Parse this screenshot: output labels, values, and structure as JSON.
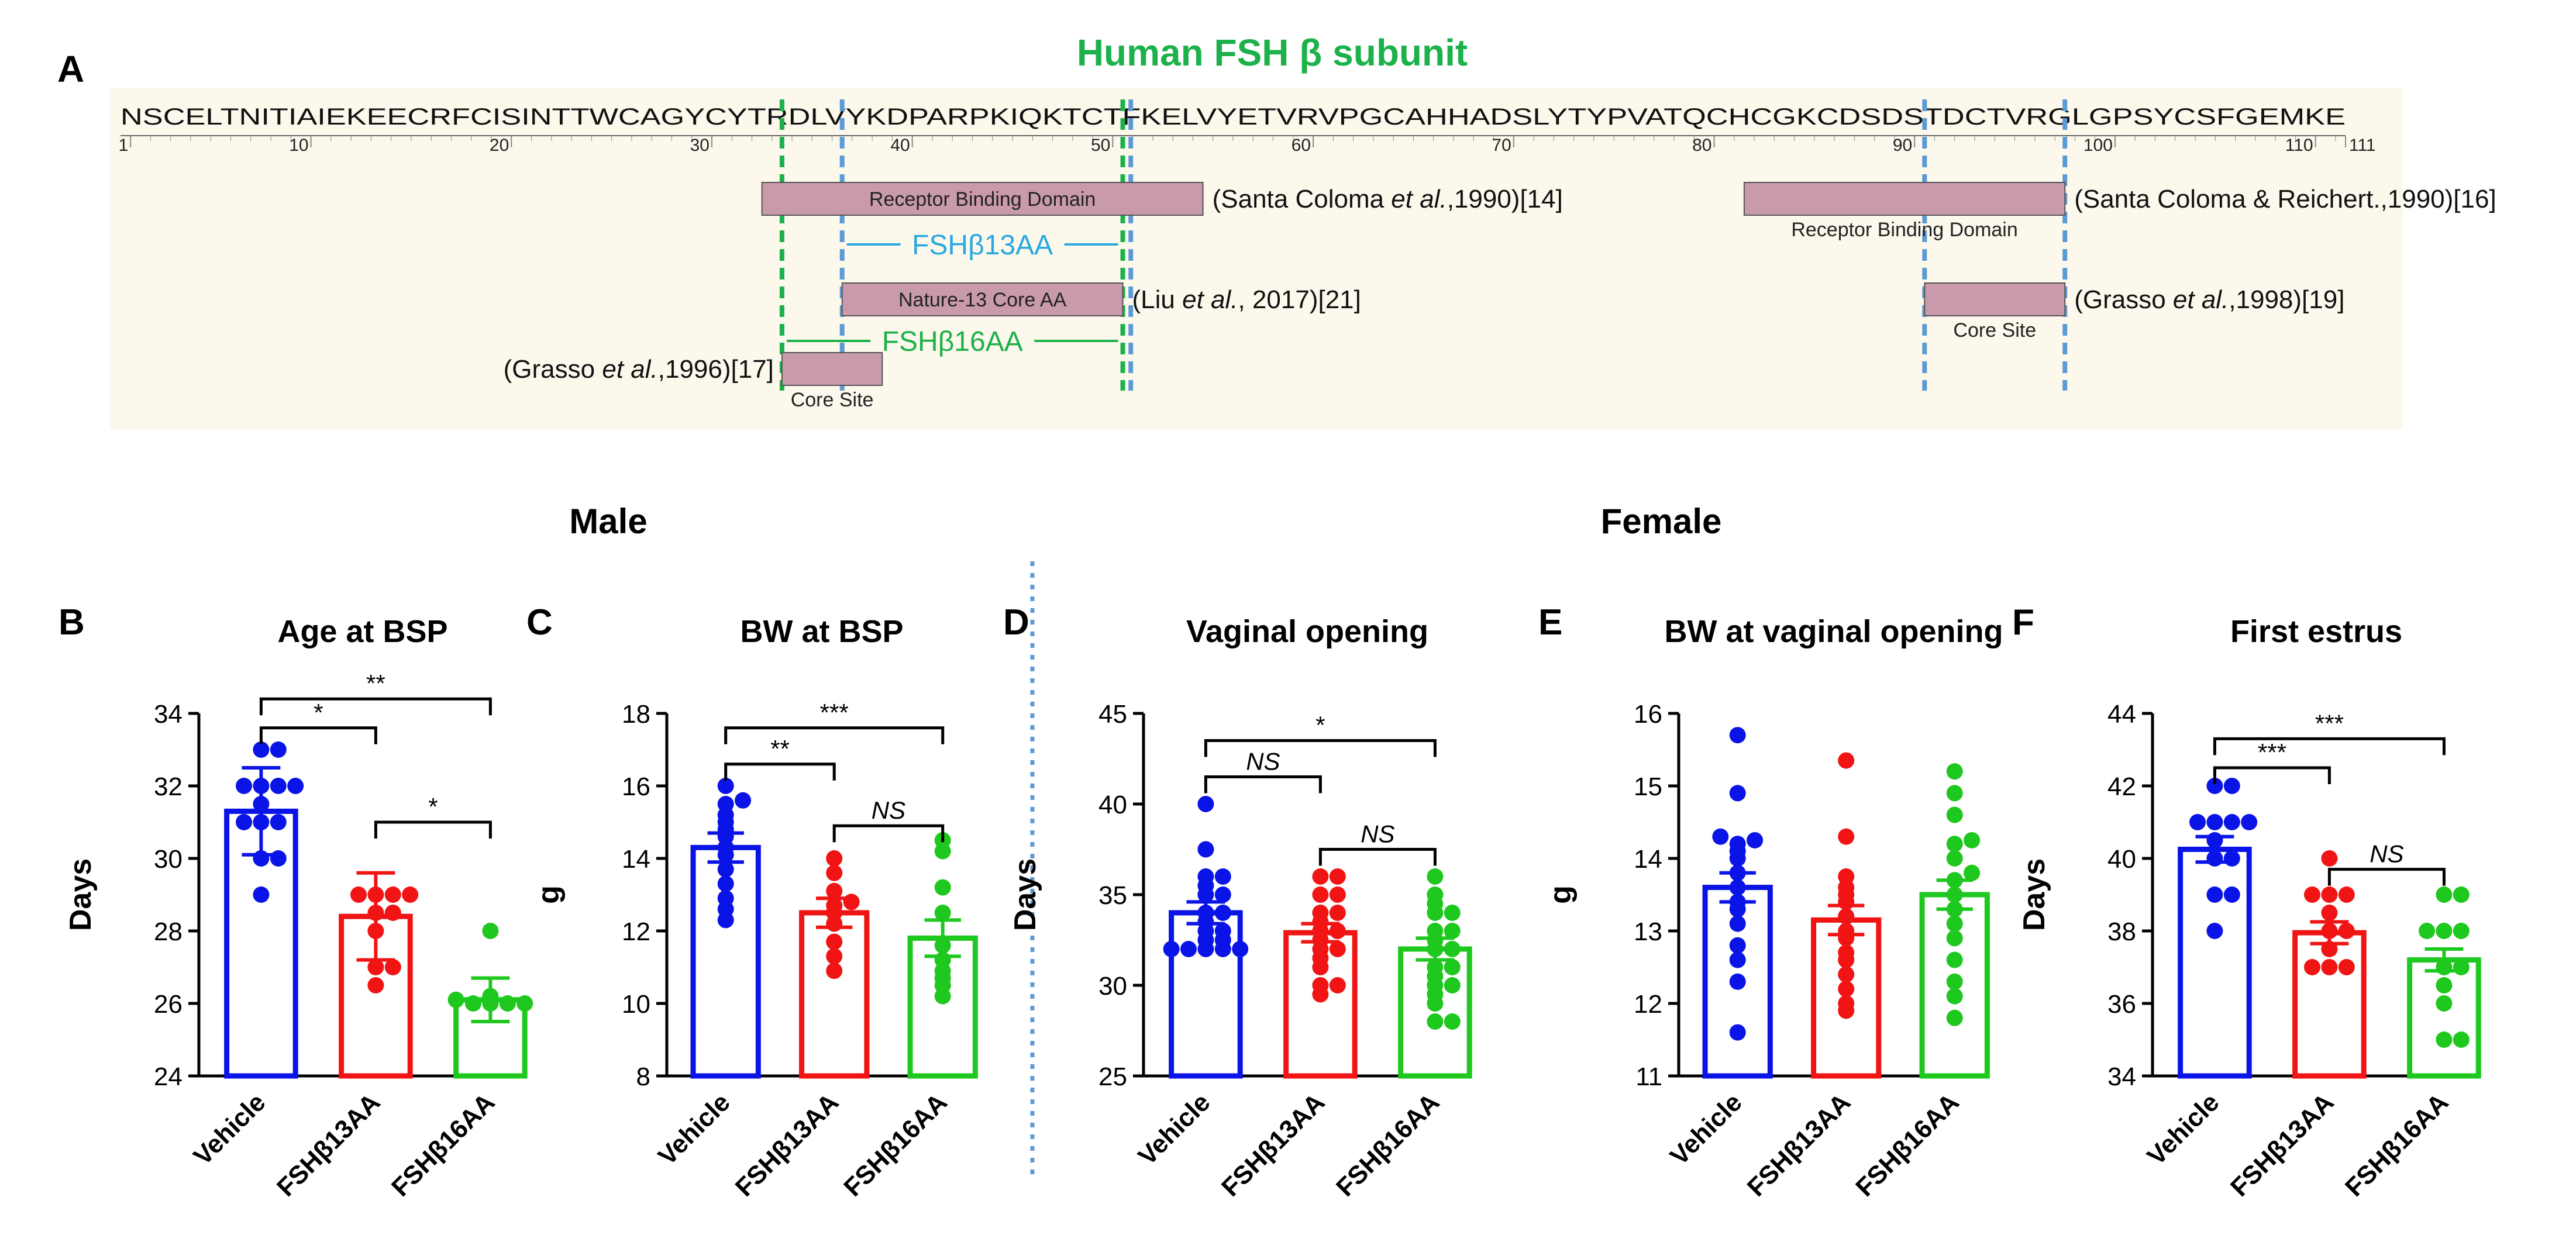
{
  "panel_a": {
    "label": "A",
    "title": "Human FSH β subunit",
    "sequence": "NSCELTNITIAIEKEECRFCISINTTWCAGYCYTRDLVYKDPARPKIQKTCTFKELVYETVRVPGCAHHADSLYTYPVATQCHCGKCDSDSTDCTVRGLGPSYCSFGEMKE",
    "ruler_ticks": [
      "1",
      "10",
      "20",
      "30",
      "40",
      "50",
      "60",
      "70",
      "80",
      "90",
      "100",
      "110"
    ],
    "ruler_end": "111",
    "features": [
      {
        "name": "receptor-binding-domain-1",
        "label": "Receptor Binding Domain",
        "label_position": "inside",
        "start": 33,
        "end": 54,
        "row": 1,
        "citation_pre": "(Santa Coloma ",
        "citation_em": "et al.",
        "citation_post": ",1990)[14]",
        "citation_side": "right"
      },
      {
        "name": "receptor-binding-domain-2",
        "label": "Receptor Binding Domain",
        "label_position": "below",
        "start": 82,
        "end": 97,
        "row": 1,
        "citation_pre": "(Santa Coloma & Reichert.,1990)[16]",
        "citation_em": "",
        "citation_post": "",
        "citation_side": "right"
      },
      {
        "name": "nature-13-core",
        "label": "Nature-13 Core AA",
        "label_position": "inside",
        "start": 37,
        "end": 50,
        "row": 3,
        "citation_pre": "(Liu ",
        "citation_em": "et al.",
        "citation_post": ", 2017)[21]",
        "citation_side": "right"
      },
      {
        "name": "core-site-2",
        "label": "Core Site",
        "label_position": "below",
        "start": 91,
        "end": 97,
        "row": 3,
        "citation_pre": "(Grasso ",
        "citation_em": "et al.",
        "citation_post": ",1998)[19]",
        "citation_side": "right"
      },
      {
        "name": "core-site-1",
        "label": "Core Site",
        "label_position": "below",
        "start": 34,
        "end": 38,
        "row": 5,
        "citation_pre": "(Grasso ",
        "citation_em": "et al.",
        "citation_post": ",1996)[17]",
        "citation_side": "left"
      }
    ],
    "spans": [
      {
        "name": "fshb13aa-span",
        "label": "FSHβ13AA",
        "start": 37,
        "end": 50,
        "row": 2,
        "color": "#2aa9e0"
      },
      {
        "name": "fshb16aa-span",
        "label": "FSHβ16AA",
        "start": 34,
        "end": 50,
        "row": 4,
        "color": "#1db14b"
      }
    ],
    "guide_lines": [
      {
        "name": "guide-line-pos34",
        "pos": 33.5,
        "color": "#1db14b"
      },
      {
        "name": "guide-line-pos37",
        "pos": 36.5,
        "color": "#5b9bd5"
      },
      {
        "name": "guide-line-pos50",
        "pos": 50.5,
        "color": "#1db14b"
      },
      {
        "name": "guide-line-pos50b",
        "pos": 50.9,
        "color": "#5b9bd5"
      },
      {
        "name": "guide-line-pos91",
        "pos": 90.5,
        "color": "#5b9bd5"
      },
      {
        "name": "guide-line-pos97",
        "pos": 97.5,
        "color": "#5b9bd5"
      }
    ]
  },
  "section_labels": {
    "male": "Male",
    "female": "Female"
  },
  "colors": {
    "vehicle": "#0a14e6",
    "fshb13aa": "#f01414",
    "fshb16aa": "#1ec81e",
    "title_green": "#1db14b",
    "sequence_bg": "#fdf8ec",
    "bar_fill": "#c99aab",
    "divider": "#5b9bd5"
  },
  "chart_data": [
    {
      "panel": "B",
      "type": "bar",
      "title": "Age at BSP",
      "ylabel": "Days",
      "ylim": [
        24,
        34
      ],
      "yticks": [
        24,
        26,
        28,
        30,
        32,
        34
      ],
      "categories": [
        "Vehicle",
        "FSHβ13AA",
        "FSHβ16AA"
      ],
      "series": [
        {
          "name": "Vehicle",
          "mean": 31.3,
          "sem": 1.2,
          "points": [
            33,
            33,
            32,
            32,
            32,
            32,
            31.5,
            31,
            31,
            31,
            30,
            30,
            29
          ]
        },
        {
          "name": "FSHβ13AA",
          "mean": 28.4,
          "sem": 1.2,
          "points": [
            29,
            29,
            29,
            29,
            28.5,
            28.5,
            28,
            27,
            27,
            26.5
          ]
        },
        {
          "name": "FSHβ16AA",
          "mean": 26.1,
          "sem": 0.6,
          "points": [
            28,
            26.2,
            26.1,
            26,
            26,
            26,
            26
          ]
        }
      ],
      "brackets": [
        {
          "from": 0,
          "to": 1,
          "label": "*",
          "italic": false,
          "y": 33.6
        },
        {
          "from": 0,
          "to": 2,
          "label": "**",
          "italic": false,
          "y": 34.4
        },
        {
          "from": 1,
          "to": 2,
          "label": "*",
          "italic": false,
          "y": 31.0
        }
      ]
    },
    {
      "panel": "C",
      "type": "bar",
      "title": "BW at BSP",
      "ylabel": "g",
      "ylim": [
        8,
        18
      ],
      "yticks": [
        8,
        10,
        12,
        14,
        16,
        18
      ],
      "categories": [
        "Vehicle",
        "FSHβ13AA",
        "FSHβ16AA"
      ],
      "series": [
        {
          "name": "Vehicle",
          "mean": 14.3,
          "sem": 0.4,
          "points": [
            16,
            15.6,
            15.5,
            15.2,
            15,
            14.8,
            14.6,
            14.3,
            14.1,
            13.7,
            13.3,
            12.9,
            12.6,
            12.3
          ]
        },
        {
          "name": "FSHβ13AA",
          "mean": 12.5,
          "sem": 0.4,
          "points": [
            14,
            13.6,
            13.1,
            12.8,
            12.7,
            12.5,
            12.2,
            11.7,
            11.3,
            10.9
          ]
        },
        {
          "name": "FSHβ16AA",
          "mean": 11.8,
          "sem": 0.5,
          "points": [
            14.5,
            14.2,
            13.2,
            12.5,
            11.6,
            11.2,
            10.9,
            10.7,
            10.5,
            10.2
          ]
        }
      ],
      "brackets": [
        {
          "from": 0,
          "to": 1,
          "label": "**",
          "italic": false,
          "y": 16.6
        },
        {
          "from": 0,
          "to": 2,
          "label": "***",
          "italic": false,
          "y": 17.6
        },
        {
          "from": 1,
          "to": 2,
          "label": "NS",
          "italic": true,
          "y": 14.9
        }
      ]
    },
    {
      "panel": "D",
      "type": "bar",
      "title": "Vaginal opening",
      "ylabel": "Days",
      "ylim": [
        25,
        45
      ],
      "yticks": [
        25,
        30,
        35,
        40,
        45
      ],
      "categories": [
        "Vehicle",
        "FSHβ13AA",
        "FSHβ16AA"
      ],
      "series": [
        {
          "name": "Vehicle",
          "mean": 34,
          "sem": 0.6,
          "points": [
            40,
            37.5,
            36,
            36,
            35.5,
            35,
            35,
            34,
            34,
            33.5,
            33,
            33,
            32.5,
            32.5,
            32,
            32,
            32,
            32,
            32
          ]
        },
        {
          "name": "FSHβ13AA",
          "mean": 32.9,
          "sem": 0.5,
          "points": [
            36,
            36,
            35,
            35,
            34,
            34,
            33.5,
            33,
            33,
            32.5,
            32,
            32,
            31.5,
            31,
            30,
            30,
            29.5
          ]
        },
        {
          "name": "FSHβ16AA",
          "mean": 32,
          "sem": 0.6,
          "points": [
            36,
            35,
            34.5,
            34,
            34,
            33,
            33,
            32.5,
            32,
            32,
            31,
            31,
            30.5,
            30,
            30,
            29.5,
            29,
            28,
            28
          ]
        }
      ],
      "brackets": [
        {
          "from": 0,
          "to": 1,
          "label": "NS",
          "italic": true,
          "y": 41.5
        },
        {
          "from": 0,
          "to": 2,
          "label": "*",
          "italic": false,
          "y": 43.5
        },
        {
          "from": 1,
          "to": 2,
          "label": "NS",
          "italic": true,
          "y": 37.5
        }
      ]
    },
    {
      "panel": "E",
      "type": "bar",
      "title": "BW at vaginal opening",
      "ylabel": "g",
      "ylim": [
        11,
        16
      ],
      "yticks": [
        11,
        12,
        13,
        14,
        15,
        16
      ],
      "categories": [
        "Vehicle",
        "FSHβ13AA",
        "FSHβ16AA"
      ],
      "series": [
        {
          "name": "Vehicle",
          "mean": 13.6,
          "sem": 0.2,
          "points": [
            15.7,
            14.9,
            14.3,
            14.25,
            14.2,
            14.1,
            14,
            13.8,
            13.6,
            13.4,
            13.3,
            13.1,
            12.8,
            12.6,
            12.3,
            11.6
          ]
        },
        {
          "name": "FSHβ13AA",
          "mean": 13.15,
          "sem": 0.2,
          "points": [
            15.35,
            14.3,
            13.75,
            13.6,
            13.5,
            13.4,
            13.2,
            13,
            12.9,
            12.7,
            12.6,
            12.4,
            12.2,
            12,
            11.9
          ]
        },
        {
          "name": "FSHβ16AA",
          "mean": 13.5,
          "sem": 0.2,
          "points": [
            15.2,
            14.9,
            14.6,
            14.25,
            14.2,
            14,
            13.8,
            13.7,
            13.5,
            13.3,
            13.1,
            12.9,
            12.6,
            12.3,
            12.1,
            11.8
          ]
        }
      ],
      "brackets": []
    },
    {
      "panel": "F",
      "type": "bar",
      "title": "First estrus",
      "ylabel": "Days",
      "ylim": [
        34,
        44
      ],
      "yticks": [
        34,
        36,
        38,
        40,
        42,
        44
      ],
      "categories": [
        "Vehicle",
        "FSHβ13AA",
        "FSHβ16AA"
      ],
      "series": [
        {
          "name": "Vehicle",
          "mean": 40.25,
          "sem": 0.35,
          "points": [
            42,
            42,
            41,
            41,
            41,
            41,
            40.5,
            40,
            40,
            39,
            39,
            38
          ]
        },
        {
          "name": "FSHβ13AA",
          "mean": 37.95,
          "sem": 0.3,
          "points": [
            40,
            39,
            39,
            39,
            38.5,
            38,
            38,
            37.5,
            37,
            37,
            37
          ]
        },
        {
          "name": "FSHβ16AA",
          "mean": 37.2,
          "sem": 0.3,
          "points": [
            39,
            39,
            38,
            38,
            38,
            37,
            37,
            36.5,
            36,
            35,
            35
          ]
        }
      ],
      "brackets": [
        {
          "from": 0,
          "to": 1,
          "label": "***",
          "italic": false,
          "y": 42.5
        },
        {
          "from": 0,
          "to": 2,
          "label": "***",
          "italic": false,
          "y": 43.3
        },
        {
          "from": 1,
          "to": 2,
          "label": "NS",
          "italic": true,
          "y": 39.7
        }
      ]
    }
  ]
}
